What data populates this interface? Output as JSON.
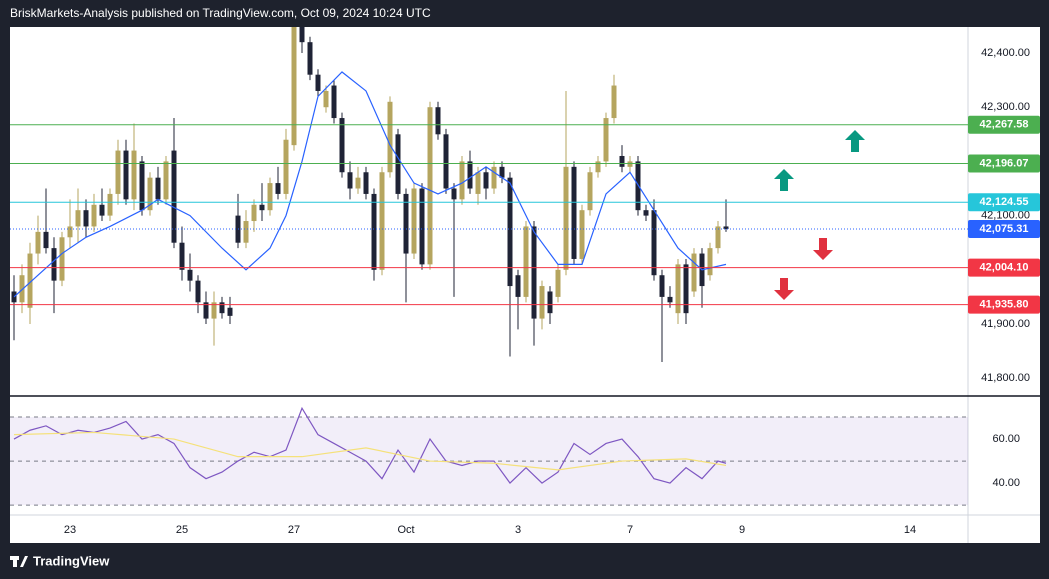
{
  "header": "BriskMarkets-Analysis published on TradingView.com, Oct 09, 2024 10:24 UTC",
  "footer": "TradingView",
  "chart_data": [
    {
      "type": "candlestick",
      "up_color": "#b5a55f",
      "down_color": "#1f2336",
      "xlim": [
        -0.5,
        119.25
      ],
      "ylim": [
        41769,
        42448
      ],
      "yticks": [
        {
          "value": 41800,
          "label": "41,800.00"
        },
        {
          "value": 41900,
          "label": "41,900.00"
        },
        {
          "value": 42100,
          "label": "42,100.00"
        },
        {
          "value": 42300,
          "label": "42,300.00"
        },
        {
          "value": 42400,
          "label": "42,400.00"
        }
      ],
      "open": [
        41960,
        41940,
        41930,
        42030,
        42070,
        42040,
        41980,
        42060,
        42080,
        42110,
        42080,
        42120,
        42100,
        42140,
        42220,
        42130,
        42200,
        42110,
        42170,
        42130,
        42220,
        42050,
        42000,
        41980,
        41940,
        41910,
        41940,
        41930,
        42100,
        42050,
        42090,
        42120,
        42110,
        42160,
        42140,
        42230,
        42450,
        42420,
        42360,
        42300,
        42340,
        42280,
        42180,
        42150,
        42180,
        42140,
        42000,
        42180,
        42250,
        42140,
        42030,
        42150,
        42010,
        42300,
        42250,
        42150,
        42130,
        42200,
        42140,
        42180,
        42150,
        42190,
        42170,
        41990,
        41950,
        42080,
        41910,
        41960,
        41950,
        42000,
        42190,
        42020,
        42110,
        42180,
        42200,
        42280,
        42210,
        42190,
        42200,
        42110,
        42110,
        41990,
        41950,
        41920,
        42010,
        41960,
        42030,
        41990,
        42040,
        42080
      ],
      "high": [
        41990,
        42010,
        42050,
        42100,
        42150,
        42060,
        42070,
        42130,
        42150,
        42130,
        42140,
        42150,
        42150,
        42240,
        42240,
        42270,
        42210,
        42180,
        42190,
        42210,
        42280,
        42080,
        42030,
        41990,
        41960,
        41960,
        41950,
        41950,
        42140,
        42110,
        42130,
        42160,
        42170,
        42190,
        42260,
        42460,
        42460,
        42430,
        42370,
        42340,
        42350,
        42290,
        42200,
        42190,
        42190,
        42150,
        42190,
        42320,
        42260,
        42150,
        42160,
        42160,
        42310,
        42310,
        42260,
        42160,
        42210,
        42220,
        42190,
        42190,
        42200,
        42200,
        42180,
        42000,
        42090,
        42090,
        41980,
        41970,
        42010,
        42330,
        42200,
        42120,
        42190,
        42210,
        42290,
        42360,
        42230,
        42210,
        42210,
        42120,
        42130,
        42000,
        41970,
        42020,
        42020,
        42040,
        42040,
        42050,
        42090,
        42130
      ],
      "low": [
        41870,
        41920,
        41900,
        42010,
        42030,
        41920,
        41970,
        42040,
        42050,
        42060,
        42070,
        42090,
        42090,
        42120,
        42120,
        42110,
        42100,
        42100,
        42120,
        42120,
        42040,
        41980,
        41960,
        41920,
        41900,
        41860,
        41910,
        41900,
        42040,
        42040,
        42070,
        42090,
        42100,
        42130,
        42130,
        42220,
        42400,
        42350,
        42320,
        42290,
        42270,
        42170,
        42130,
        42140,
        42130,
        41980,
        41990,
        42170,
        42130,
        41940,
        42020,
        42000,
        42000,
        42240,
        42140,
        41950,
        42120,
        42140,
        42120,
        42130,
        42140,
        42160,
        41840,
        41890,
        41940,
        41860,
        41890,
        41900,
        41940,
        41990,
        42010,
        42010,
        42100,
        42170,
        42190,
        42270,
        42180,
        42180,
        42100,
        42090,
        41980,
        41830,
        41930,
        41900,
        41900,
        41950,
        41930,
        41980,
        42030,
        42070
      ],
      "close": [
        41940,
        41990,
        42030,
        42070,
        42040,
        41980,
        42060,
        42080,
        42110,
        42080,
        42120,
        42100,
        42140,
        42220,
        42130,
        42220,
        42110,
        42170,
        42130,
        42200,
        42050,
        42000,
        41980,
        41940,
        41910,
        41940,
        41920,
        41915,
        42050,
        42090,
        42120,
        42110,
        42160,
        42140,
        42240,
        42450,
        42420,
        42360,
        42330,
        42330,
        42280,
        42180,
        42150,
        42170,
        42140,
        42000,
        42180,
        42310,
        42140,
        42030,
        42150,
        42010,
        42300,
        42250,
        42150,
        42130,
        42200,
        42150,
        42180,
        42150,
        42190,
        42170,
        41970,
        41950,
        42080,
        41910,
        41970,
        41920,
        42000,
        42190,
        42020,
        42110,
        42180,
        42200,
        42280,
        42340,
        42190,
        42200,
        42110,
        42100,
        41990,
        41950,
        41940,
        42010,
        41920,
        42030,
        41970,
        42040,
        42080,
        42075.31
      ],
      "series": [
        {
          "color": "#2962ff",
          "x": [
            0,
            3,
            6,
            9,
            12,
            16,
            18,
            22,
            26,
            29,
            32,
            34,
            36,
            38,
            41,
            44,
            47,
            50,
            53,
            56,
            59,
            62,
            65,
            68,
            71,
            74,
            77,
            80,
            83,
            86,
            89
          ],
          "values": [
            41950,
            41990,
            42030,
            42060,
            42080,
            42110,
            42130,
            42100,
            42040,
            42000,
            42040,
            42100,
            42200,
            42320,
            42365,
            42330,
            42230,
            42160,
            42140,
            42160,
            42190,
            42160,
            42070,
            42010,
            42010,
            42140,
            42180,
            42110,
            42040,
            42000,
            42010
          ]
        }
      ],
      "levels": [
        {
          "value": 42267.58,
          "label": "42,267.58",
          "color": "#4caf50"
        },
        {
          "value": 42196.07,
          "label": "42,196.07",
          "color": "#4caf50"
        },
        {
          "value": 42124.55,
          "label": "42,124.55",
          "color": "#26c6da"
        },
        {
          "value": 42004.1,
          "label": "42,004.10",
          "color": "#f23645"
        },
        {
          "value": 41935.8,
          "label": "41,935.80",
          "color": "#f23645"
        }
      ],
      "last_price": {
        "value": 42075.31,
        "label": "42,075.31",
        "color": "#2962ff"
      }
    },
    {
      "type": "line",
      "xlim": [
        -0.5,
        119.25
      ],
      "ylim": [
        25.5,
        79.1
      ],
      "yticks": [
        {
          "value": 40,
          "label": "40.00"
        },
        {
          "value": 60,
          "label": "60.00"
        }
      ],
      "hlines": [
        30,
        50,
        70
      ],
      "band_color": "#7e57c2",
      "xticks": [
        {
          "value": 7,
          "label": "23"
        },
        {
          "value": 21,
          "label": "25"
        },
        {
          "value": 35,
          "label": "27"
        },
        {
          "value": 49,
          "label": "Oct"
        },
        {
          "value": 63,
          "label": "3"
        },
        {
          "value": 77,
          "label": "7"
        },
        {
          "value": 91,
          "label": "9"
        },
        {
          "value": 112,
          "label": "14"
        }
      ],
      "series": [
        {
          "color": "#7e57c2",
          "x": [
            0,
            2,
            4,
            6,
            8,
            10,
            12,
            14,
            16,
            18,
            20,
            22,
            24,
            26,
            28,
            30,
            32,
            34,
            36,
            38,
            40,
            42,
            44,
            46,
            48,
            50,
            52,
            54,
            56,
            58,
            60,
            62,
            64,
            66,
            68,
            70,
            72,
            74,
            76,
            78,
            80,
            82,
            84,
            86,
            88,
            89
          ],
          "values": [
            60,
            64,
            66,
            62,
            64,
            63,
            65,
            68,
            60,
            62,
            58,
            47,
            42,
            45,
            50,
            54,
            52,
            55,
            74,
            62,
            58,
            54,
            50,
            42,
            55,
            45,
            60,
            50,
            48,
            50,
            50,
            40,
            47,
            40,
            45,
            58,
            53,
            58,
            60,
            52,
            42,
            40,
            47,
            42,
            50,
            49
          ]
        },
        {
          "color": "#f5e17a",
          "x": [
            0,
            10,
            20,
            28,
            36,
            44,
            52,
            60,
            68,
            76,
            84,
            89
          ],
          "values": [
            62,
            63,
            60,
            52,
            52,
            56,
            50,
            49,
            46,
            50,
            51,
            48
          ]
        }
      ]
    }
  ]
}
